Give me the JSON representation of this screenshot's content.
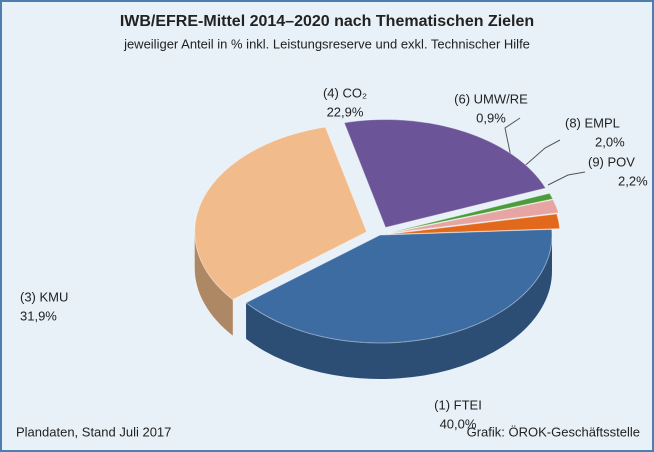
{
  "chart_data": {
    "type": "pie",
    "title": "IWB/EFRE-Mittel 2014–2020 nach Thematischen Zielen",
    "subtitle": "jeweiliger Anteil in % inkl. Leistungsreserve und exkl. Technischer Hilfe",
    "categories": [
      "(1) FTEI",
      "(3) KMU",
      "(4) CO₂",
      "(6) UMW/RE",
      "(8) EMPL",
      "(9) POV"
    ],
    "values": [
      40.0,
      31.9,
      22.9,
      0.9,
      2.0,
      2.2
    ],
    "value_labels": [
      "40,0%",
      "31,9%",
      "22,9%",
      "0,9%",
      "2,0%",
      "2,2%"
    ],
    "colors": [
      "#3d6ca3",
      "#f2bb8c",
      "#6b5497",
      "#4c9c3b",
      "#e6a5a2",
      "#e2691c"
    ],
    "source": "Plandaten, Stand Juli 2017",
    "credit": "Grafik: ÖROK-Geschäftsstelle"
  }
}
